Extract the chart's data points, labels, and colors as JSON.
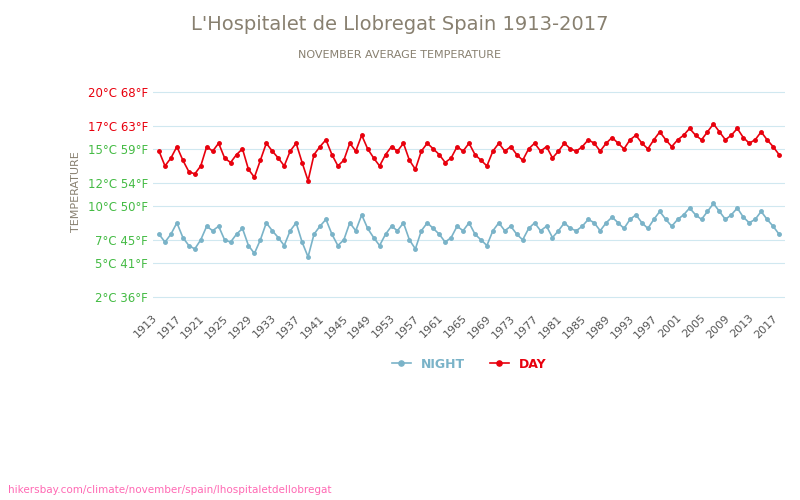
{
  "title": "L'Hospitalet de Llobregat Spain 1913-2017",
  "subtitle": "NOVEMBER AVERAGE TEMPERATURE",
  "xlabel": "",
  "ylabel": "TEMPERATURE",
  "url_text": "hikersbay.com/climate/november/spain/lhospitaletdellobregat",
  "year_start": 1913,
  "year_end": 2017,
  "yticks_c": [
    2,
    5,
    7,
    10,
    12,
    15,
    17,
    20
  ],
  "yticks_f": [
    36,
    41,
    45,
    50,
    54,
    59,
    63,
    68
  ],
  "ylim_c": [
    1.0,
    21.5
  ],
  "day_color": "#e8000d",
  "night_color": "#7ab3c8",
  "title_color": "#888070",
  "subtitle_color": "#888070",
  "ylabel_color": "#888070",
  "ytick_day_color": "#e8000d",
  "ytick_night_color": "#44bb44",
  "url_color": "#ff69b4",
  "background_color": "#ffffff",
  "grid_color": "#d0e8f0",
  "legend_night_color": "#7ab3c8",
  "legend_day_color": "#e8000d",
  "day_data": [
    14.8,
    13.5,
    14.2,
    15.2,
    14.0,
    13.0,
    12.8,
    13.5,
    15.2,
    14.8,
    15.5,
    14.2,
    13.8,
    14.5,
    15.0,
    13.2,
    12.5,
    14.0,
    15.5,
    14.8,
    14.2,
    13.5,
    14.8,
    15.5,
    13.8,
    12.2,
    14.5,
    15.2,
    15.8,
    14.5,
    13.5,
    14.0,
    15.5,
    14.8,
    16.2,
    15.0,
    14.2,
    13.5,
    14.5,
    15.2,
    14.8,
    15.5,
    14.0,
    13.2,
    14.8,
    15.5,
    15.0,
    14.5,
    13.8,
    14.2,
    15.2,
    14.8,
    15.5,
    14.5,
    14.0,
    13.5,
    14.8,
    15.5,
    14.8,
    15.2,
    14.5,
    14.0,
    15.0,
    15.5,
    14.8,
    15.2,
    14.2,
    14.8,
    15.5,
    15.0,
    14.8,
    15.2,
    15.8,
    15.5,
    14.8,
    15.5,
    16.0,
    15.5,
    15.0,
    15.8,
    16.2,
    15.5,
    15.0,
    15.8,
    16.5,
    15.8,
    15.2,
    15.8,
    16.2,
    16.8,
    16.2,
    15.8,
    16.5,
    17.2,
    16.5,
    15.8,
    16.2,
    16.8,
    16.0,
    15.5,
    15.8,
    16.5,
    15.8,
    15.2,
    14.5
  ],
  "night_data": [
    7.5,
    6.8,
    7.5,
    8.5,
    7.2,
    6.5,
    6.2,
    7.0,
    8.2,
    7.8,
    8.2,
    7.0,
    6.8,
    7.5,
    8.0,
    6.5,
    5.8,
    7.0,
    8.5,
    7.8,
    7.2,
    6.5,
    7.8,
    8.5,
    6.8,
    5.5,
    7.5,
    8.2,
    8.8,
    7.5,
    6.5,
    7.0,
    8.5,
    7.8,
    9.2,
    8.0,
    7.2,
    6.5,
    7.5,
    8.2,
    7.8,
    8.5,
    7.0,
    6.2,
    7.8,
    8.5,
    8.0,
    7.5,
    6.8,
    7.2,
    8.2,
    7.8,
    8.5,
    7.5,
    7.0,
    6.5,
    7.8,
    8.5,
    7.8,
    8.2,
    7.5,
    7.0,
    8.0,
    8.5,
    7.8,
    8.2,
    7.2,
    7.8,
    8.5,
    8.0,
    7.8,
    8.2,
    8.8,
    8.5,
    7.8,
    8.5,
    9.0,
    8.5,
    8.0,
    8.8,
    9.2,
    8.5,
    8.0,
    8.8,
    9.5,
    8.8,
    8.2,
    8.8,
    9.2,
    9.8,
    9.2,
    8.8,
    9.5,
    10.2,
    9.5,
    8.8,
    9.2,
    9.8,
    9.0,
    8.5,
    8.8,
    9.5,
    8.8,
    8.2,
    7.5
  ]
}
